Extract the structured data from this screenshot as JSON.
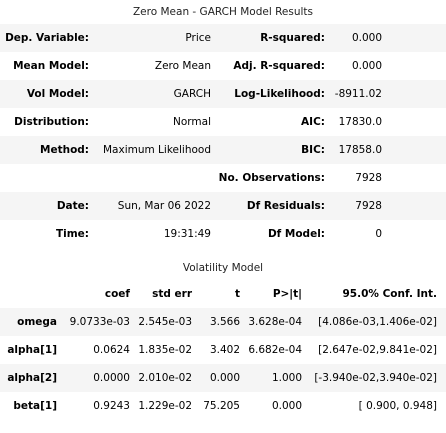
{
  "summary": {
    "title": "Zero Mean - GARCH Model Results",
    "rows": [
      {
        "l1": "Dep. Variable:",
        "v1": "Price",
        "l2": "R-squared:",
        "v2": "0.000"
      },
      {
        "l1": "Mean Model:",
        "v1": "Zero Mean",
        "l2": "Adj. R-squared:",
        "v2": "0.000"
      },
      {
        "l1": "Vol Model:",
        "v1": "GARCH",
        "l2": "Log-Likelihood:",
        "v2": "-8911.02"
      },
      {
        "l1": "Distribution:",
        "v1": "Normal",
        "l2": "AIC:",
        "v2": "17830.0"
      },
      {
        "l1": "Method:",
        "v1": "Maximum Likelihood",
        "l2": "BIC:",
        "v2": "17858.0"
      },
      {
        "l1": "",
        "v1": "",
        "l2": "No. Observations:",
        "v2": "7928"
      },
      {
        "l1": "Date:",
        "v1": "Sun, Mar 06 2022",
        "l2": "Df Residuals:",
        "v2": "7928"
      },
      {
        "l1": "Time:",
        "v1": "19:31:49",
        "l2": "Df Model:",
        "v2": "0"
      }
    ]
  },
  "volatility": {
    "title": "Volatility Model",
    "headers": [
      "",
      "coef",
      "std err",
      "t",
      "P>|t|",
      "95.0% Conf. Int."
    ],
    "rows": [
      {
        "name": "omega",
        "coef": "9.0733e-03",
        "stderr": "2.545e-03",
        "t": "3.566",
        "p": "3.628e-04",
        "ci": "[4.086e-03,1.406e-02]"
      },
      {
        "name": "alpha[1]",
        "coef": "0.0624",
        "stderr": "1.835e-02",
        "t": "3.402",
        "p": "6.682e-04",
        "ci": "[2.647e-02,9.841e-02]"
      },
      {
        "name": "alpha[2]",
        "coef": "0.0000",
        "stderr": "2.010e-02",
        "t": "0.000",
        "p": "1.000",
        "ci": "[-3.940e-02,3.940e-02]"
      },
      {
        "name": "beta[1]",
        "coef": "0.9243",
        "stderr": "1.229e-02",
        "t": "75.205",
        "p": "0.000",
        "ci": "[ 0.900, 0.948]"
      }
    ]
  }
}
